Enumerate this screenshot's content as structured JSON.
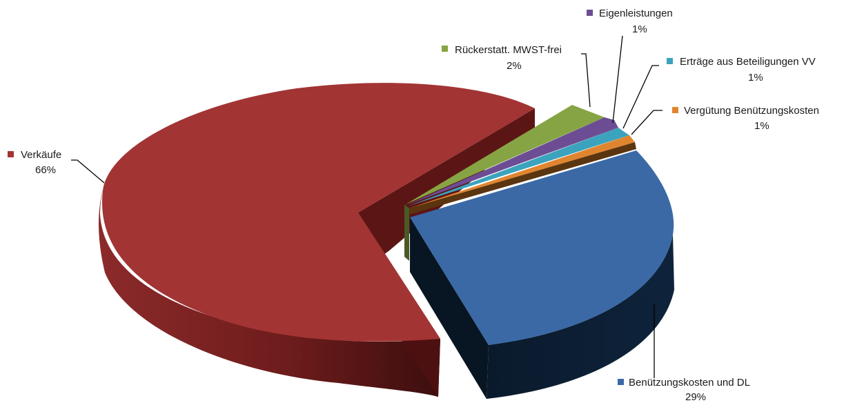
{
  "chart_data": {
    "type": "pie",
    "variant": "3d-exploded",
    "series": [
      {
        "category": "Verkäufe",
        "value": 66,
        "label": "66%",
        "color": "#a33434"
      },
      {
        "category": "Benützungskosten und DL",
        "value": 29,
        "label": "29%",
        "color": "#3a69a6"
      },
      {
        "category": "Vergütung Benützungskosten",
        "value": 1,
        "label": "1%",
        "color": "#e0852f"
      },
      {
        "category": "Erträge aus Beteiligungen VV",
        "value": 1,
        "label": "1%",
        "color": "#3ba3bd"
      },
      {
        "category": "Eigenleistungen",
        "value": 1,
        "label": "1%",
        "color": "#6c4d94"
      },
      {
        "category": "Rückerstatt. MWST-frei",
        "value": 2,
        "label": "2%",
        "color": "#86a443"
      }
    ]
  }
}
